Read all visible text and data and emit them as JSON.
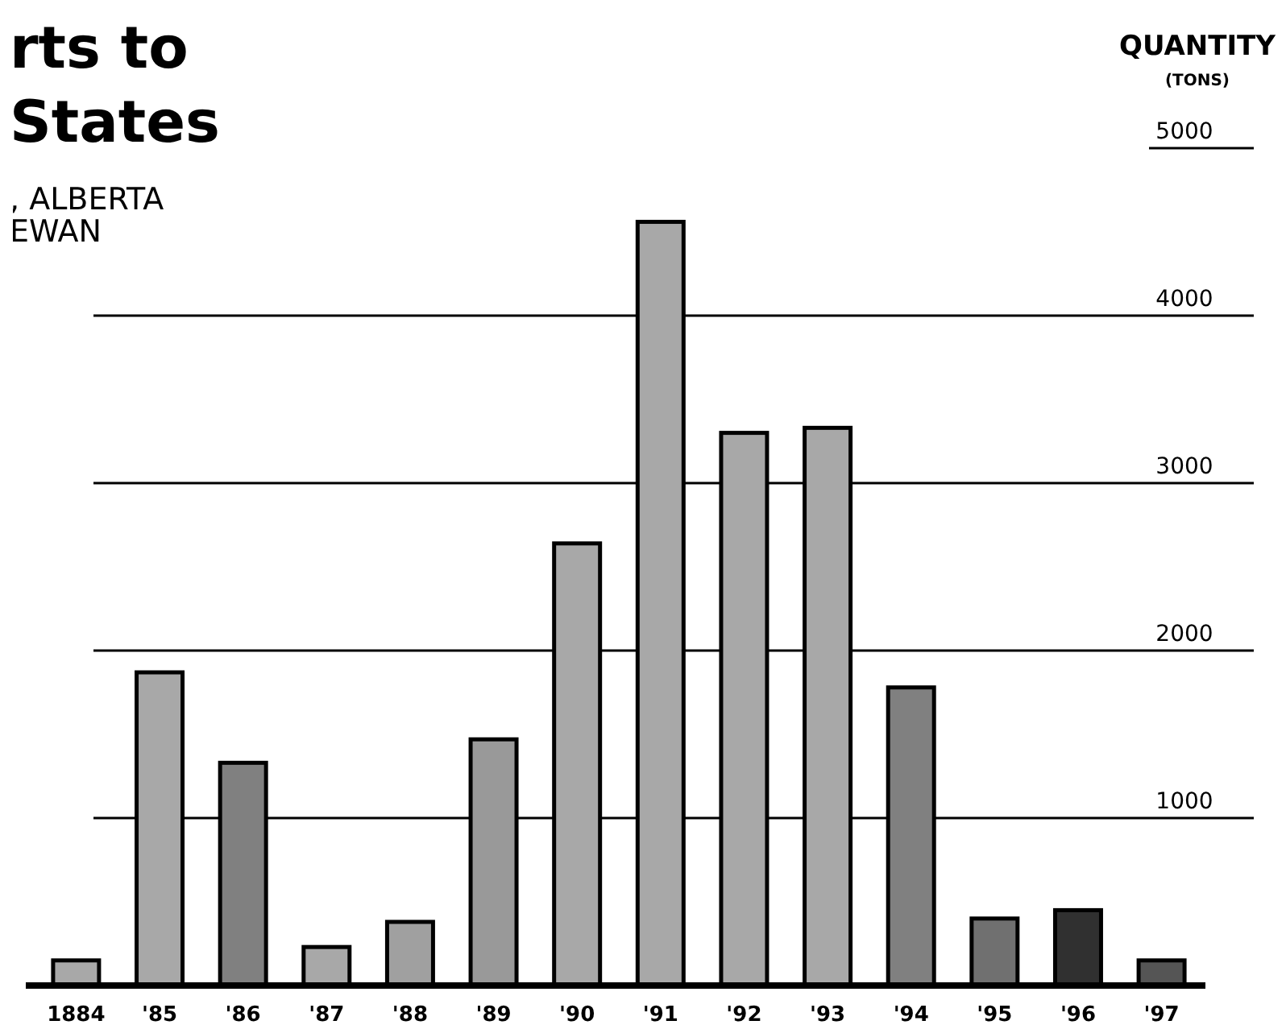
{
  "chart_data": {
    "type": "bar",
    "title": "rts to\nStates",
    "subtitle": ", ALBERTA\nEWAN",
    "ylabel": "QUANTITY\n(TONS)",
    "categories": [
      "1884",
      "'85",
      "'86",
      "'87",
      "'88",
      "'89",
      "'90",
      "'91",
      "'92",
      "'93",
      "'94",
      "'95",
      "'96",
      "'97"
    ],
    "values": [
      150,
      1870,
      1330,
      230,
      380,
      1470,
      2640,
      4560,
      3300,
      3330,
      1780,
      400,
      450,
      150
    ],
    "colors": [
      "#a8a8a8",
      "#a8a8a8",
      "#808080",
      "#a8a8a8",
      "#a0a0a0",
      "#999999",
      "#a8a8a8",
      "#a8a8a8",
      "#a8a8a8",
      "#a8a8a8",
      "#808080",
      "#707070",
      "#303030",
      "#555555"
    ],
    "ylim": [
      0,
      5000
    ],
    "yticks": [
      1000,
      2000,
      3000,
      4000,
      5000
    ],
    "grid": "y"
  }
}
